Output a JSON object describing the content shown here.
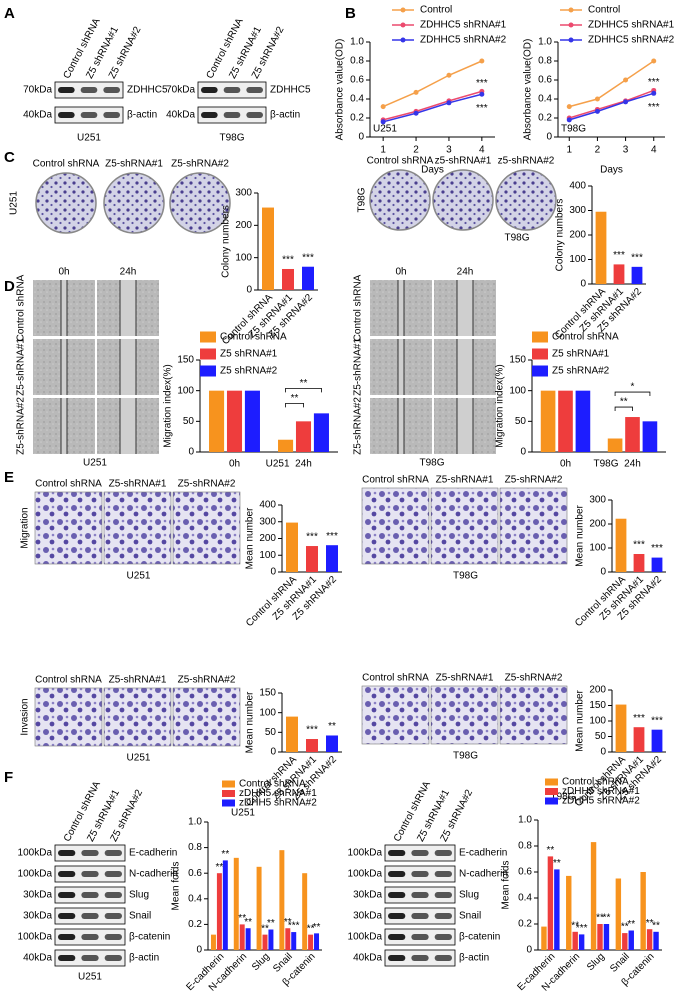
{
  "panel_labels": [
    "A",
    "B",
    "C",
    "D",
    "E",
    "F"
  ],
  "blots": [
    {
      "lanes": [
        "Control shRNA",
        "Z5 shRNA#1",
        "Z5 shRNA#2"
      ],
      "rows": [
        {
          "marker": "70kDa",
          "protein": "ZDHHC5"
        },
        {
          "marker": "40kDa",
          "protein": "β-actin"
        }
      ],
      "caption": "U251"
    },
    {
      "lanes": [
        "Control shRNA",
        "Z5 shRNA#1",
        "Z5 shRNA#2"
      ],
      "rows": [
        {
          "marker": "70kDa",
          "protein": "ZDHHC5"
        },
        {
          "marker": "40kDa",
          "protein": "β-actin"
        }
      ],
      "caption": "T98G"
    },
    {
      "lanes": [
        "Control shRNA",
        "Z5 shRNA#1",
        "Z5 shRNA#2"
      ],
      "rows": [
        {
          "marker": "100kDa",
          "protein": "E-cadherin"
        },
        {
          "marker": "100kDa",
          "protein": "N-cadherin"
        },
        {
          "marker": "30kDa",
          "protein": "Slug"
        },
        {
          "marker": "30kDa",
          "protein": "Snail"
        },
        {
          "marker": "100kDa",
          "protein": "β-catenin"
        },
        {
          "marker": "40kDa",
          "protein": "β-actin"
        }
      ],
      "caption": "U251"
    },
    {
      "lanes": [
        "Control shRNA",
        "Z5 shRNA#1",
        "Z5 shRNA#2"
      ],
      "rows": [
        {
          "marker": "100kDa",
          "protein": "E-cadherin"
        },
        {
          "marker": "100kDa",
          "protein": "N-cadherin"
        },
        {
          "marker": "30kDa",
          "protein": "Slug"
        },
        {
          "marker": "30kDa",
          "protein": "Snail"
        },
        {
          "marker": "100kDa",
          "protein": "β-catenin"
        },
        {
          "marker": "40kDa",
          "protein": "β-actin"
        }
      ]
    }
  ],
  "colony_images": [
    {
      "row_label": "U251",
      "labels": [
        "Control shRNA",
        "Z5-shRNA#1",
        "Z5-shRNA#2"
      ]
    },
    {
      "row_label": "T98G",
      "labels": [
        "Control shRNA",
        "z5-shRNA#1",
        "z5-shRNA#2"
      ],
      "caption": "T98G"
    }
  ],
  "wound_images": [
    {
      "times": [
        "0h",
        "24h"
      ],
      "rows": [
        "Control shRNA",
        "Z5-shRNA#1",
        "Z5-shRNA#2"
      ],
      "caption": "U251"
    },
    {
      "times": [
        "0h",
        "24h"
      ],
      "rows": [
        "Control shRNA",
        "Z5-shRNA#1",
        "Z5-shRNA#2"
      ],
      "caption": "T98G"
    }
  ],
  "transwell_images": [
    {
      "row_label": "Migration",
      "labels": [
        "Control shRNA",
        "Z5-shRNA#1",
        "Z5-shRNA#2"
      ],
      "caption": "U251"
    },
    {
      "labels": [
        "Control shRNA",
        "Z5-shRNA#1",
        "Z5-shRNA#2"
      ],
      "caption": "T98G"
    },
    {
      "row_label": "Invasion",
      "labels": [
        "Control shRNA",
        "Z5-shRNA#1",
        "Z5-shRNA#2"
      ],
      "caption": "U251"
    },
    {
      "labels": [
        "Control shRNA",
        "Z5-shRNA#1",
        "Z5-shRNA#2"
      ],
      "caption": "T98G"
    }
  ],
  "chart_data": [
    {
      "type": "line",
      "annotation": "U251",
      "xlabel": "Days",
      "ylabel": "Absorbance value(OD)",
      "x": [
        1,
        2,
        3,
        4
      ],
      "xlim": [
        0.6,
        4.4
      ],
      "xticks": [
        1,
        2,
        3,
        4
      ],
      "ylim": [
        0,
        1
      ],
      "yticks": [
        0,
        0.2,
        0.4,
        0.6,
        0.8,
        {
          "value": 1,
          "label": "1.0"
        }
      ],
      "significance": [
        "***",
        "***"
      ],
      "series": [
        {
          "name": "Control",
          "color": "#f5a04a",
          "values": [
            0.32,
            0.47,
            0.65,
            0.8
          ]
        },
        {
          "name": "ZDHHC5 shRNA#1",
          "color": "#ec4a6e",
          "values": [
            0.18,
            0.27,
            0.38,
            0.48
          ]
        },
        {
          "name": "ZDHHC5 shRNA#2",
          "color": "#3535e8",
          "values": [
            0.16,
            0.25,
            0.36,
            0.45
          ]
        }
      ]
    },
    {
      "type": "line",
      "annotation": "T98G",
      "xlabel": "Days",
      "ylabel": "Absorbance value(OD)",
      "x": [
        1,
        2,
        3,
        4
      ],
      "xlim": [
        0.6,
        4.4
      ],
      "xticks": [
        1,
        2,
        3,
        4
      ],
      "ylim": [
        0,
        1
      ],
      "yticks": [
        0,
        0.2,
        0.4,
        0.6,
        0.8,
        {
          "value": 1,
          "label": "1.0"
        }
      ],
      "significance": [
        "***",
        "***"
      ],
      "series": [
        {
          "name": "Control",
          "color": "#f5a04a",
          "values": [
            0.32,
            0.4,
            0.6,
            0.8
          ]
        },
        {
          "name": "ZDHHC5 shRNA#1",
          "color": "#ec4a6e",
          "values": [
            0.2,
            0.29,
            0.38,
            0.49
          ]
        },
        {
          "name": "ZDHHC5 shRNA#2",
          "color": "#3535e8",
          "values": [
            0.18,
            0.27,
            0.37,
            0.46
          ]
        }
      ]
    },
    {
      "type": "bar",
      "ylabel": "Colony numbers",
      "categories": [
        "Control shRNA",
        "Z5 shRNA#1",
        "Z5 shRNA#2"
      ],
      "values": [
        255,
        65,
        72
      ],
      "colors": [
        "#f7931e",
        "#ee3d3d",
        "#1d1dff"
      ],
      "ylim": [
        0,
        300
      ],
      "yticks": [
        0,
        100,
        200,
        300
      ],
      "significance": [
        null,
        "***",
        "***"
      ]
    },
    {
      "type": "bar",
      "ylabel": "Colony numbers",
      "categories": [
        "Control shRNA",
        "Z5 shRNA#1",
        "Z5 shRNA#2"
      ],
      "values": [
        295,
        80,
        70
      ],
      "colors": [
        "#f7931e",
        "#ee3d3d",
        "#1d1dff"
      ],
      "ylim": [
        0,
        400
      ],
      "yticks": [
        0,
        100,
        200,
        300,
        400
      ],
      "significance": [
        null,
        "***",
        "***"
      ]
    },
    {
      "type": "grouped_bar",
      "ylabel": "Migration index(%)",
      "xlabel": "U251",
      "categories": [
        "0h",
        "24h"
      ],
      "ylim": [
        0,
        150
      ],
      "yticks": [
        0,
        50,
        100,
        150
      ],
      "brackets": [
        "**",
        "**"
      ],
      "series": [
        {
          "name": "Control shRNA",
          "color": "#f7931e",
          "values": [
            100,
            20
          ]
        },
        {
          "name": "Z5 shRNA#1",
          "color": "#ee3d3d",
          "values": [
            100,
            50
          ]
        },
        {
          "name": "Z5 shRNA#2",
          "color": "#1d1dff",
          "values": [
            100,
            63
          ]
        }
      ]
    },
    {
      "type": "grouped_bar",
      "ylabel": "Migration index(%)",
      "xlabel": "T98G",
      "categories": [
        "0h",
        "24h"
      ],
      "ylim": [
        0,
        150
      ],
      "yticks": [
        0,
        50,
        100,
        150
      ],
      "brackets": [
        "**",
        "*"
      ],
      "series": [
        {
          "name": "Control shRNA",
          "color": "#f7931e",
          "values": [
            100,
            22
          ]
        },
        {
          "name": "Z5 shRNA#1",
          "color": "#ee3d3d",
          "values": [
            100,
            57
          ]
        },
        {
          "name": "Z5 shRNA#2",
          "color": "#1d1dff",
          "values": [
            100,
            50
          ]
        }
      ]
    },
    {
      "type": "bar",
      "ylabel": "Mean number",
      "categories": [
        "Control shRNA",
        "Z5 shRNA#1",
        "Z5 shRNA#2"
      ],
      "values": [
        295,
        155,
        160
      ],
      "colors": [
        "#f7931e",
        "#ee3d3d",
        "#1d1dff"
      ],
      "ylim": [
        0,
        400
      ],
      "yticks": [
        0,
        100,
        200,
        300,
        400
      ],
      "significance": [
        null,
        "***",
        "***"
      ]
    },
    {
      "type": "bar",
      "ylabel": "Mean number",
      "categories": [
        "Control shRNA",
        "Z5 shRNA#1",
        "Z5 shRNA#2"
      ],
      "values": [
        222,
        75,
        60
      ],
      "colors": [
        "#f7931e",
        "#ee3d3d",
        "#1d1dff"
      ],
      "ylim": [
        0,
        300
      ],
      "yticks": [
        0,
        100,
        200,
        300
      ],
      "significance": [
        null,
        "***",
        "***"
      ]
    },
    {
      "type": "bar",
      "ylabel": "Mean number",
      "categories": [
        "Control shRNA",
        "Z5 shRNA#1",
        "Z5 shRNA#2"
      ],
      "values": [
        90,
        33,
        42
      ],
      "colors": [
        "#f7931e",
        "#ee3d3d",
        "#1d1dff"
      ],
      "ylim": [
        0,
        150
      ],
      "yticks": [
        0,
        50,
        100,
        150
      ],
      "significance": [
        null,
        "***",
        "**"
      ]
    },
    {
      "type": "bar",
      "ylabel": "Mean number",
      "categories": [
        "Control shRNA",
        "Z5 shRNA#1",
        "Z5 shRNA#2"
      ],
      "values": [
        153,
        80,
        72
      ],
      "colors": [
        "#f7931e",
        "#ee3d3d",
        "#1d1dff"
      ],
      "ylim": [
        0,
        200
      ],
      "yticks": [
        0,
        50,
        100,
        150,
        200
      ],
      "significance": [
        null,
        "***",
        "***"
      ]
    },
    {
      "type": "grouped_bar",
      "title": "U251",
      "ylabel": "Mean folds",
      "categories": [
        "E-cadherin",
        "N-cadherin",
        "Slug",
        "Snail",
        "β-catenin"
      ],
      "ylim": [
        0,
        1
      ],
      "yticks": [
        0,
        0.2,
        0.4,
        0.6,
        0.8,
        {
          "value": 1,
          "label": "1.0"
        }
      ],
      "series": [
        {
          "name": "Control shRNA",
          "color": "#f7931e",
          "values": [
            0.12,
            0.72,
            0.65,
            0.78,
            0.6
          ]
        },
        {
          "name": "zDHH5 shRNA#1",
          "color": "#ee3d3d",
          "values": [
            0.6,
            0.2,
            0.12,
            0.17,
            0.12
          ],
          "significance": [
            "**",
            "**",
            "**",
            "**",
            "**"
          ]
        },
        {
          "name": "zDHH5 shRNA#2",
          "color": "#1d1dff",
          "values": [
            0.7,
            0.17,
            0.16,
            0.14,
            0.13
          ],
          "significance": [
            "**",
            "**",
            "**",
            "***",
            "**"
          ]
        }
      ]
    },
    {
      "type": "grouped_bar",
      "title": "T98G",
      "ylabel": "Mean folds",
      "categories": [
        "E-cadherin",
        "N-cadherin",
        "Slug",
        "Snail",
        "β-catenin"
      ],
      "ylim": [
        0,
        1
      ],
      "yticks": [
        0,
        0.2,
        0.4,
        0.6,
        0.8,
        {
          "value": 1,
          "label": "1.0"
        }
      ],
      "series": [
        {
          "name": "Control shRNA",
          "color": "#f7931e",
          "values": [
            0.18,
            0.57,
            0.83,
            0.55,
            0.6
          ]
        },
        {
          "name": "zDHH5 shRNA#1",
          "color": "#ee3d3d",
          "values": [
            0.72,
            0.14,
            0.2,
            0.13,
            0.16
          ],
          "significance": [
            "**",
            "**",
            "**",
            "**",
            "**"
          ]
        },
        {
          "name": "zDHH5 shRNA#2",
          "color": "#1d1dff",
          "values": [
            0.62,
            0.12,
            0.2,
            0.15,
            0.14
          ],
          "significance": [
            "**",
            "***",
            "**",
            "**",
            "**"
          ]
        }
      ]
    }
  ]
}
